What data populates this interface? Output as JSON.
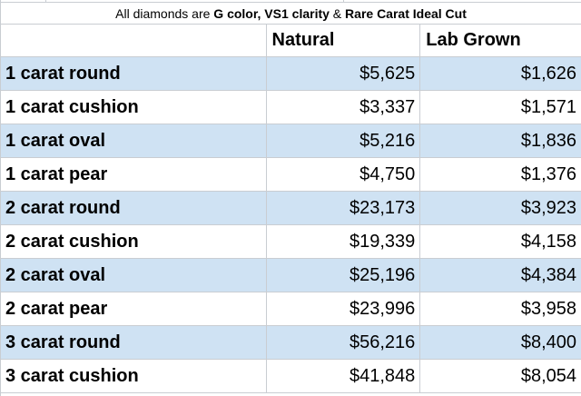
{
  "title": {
    "parts": [
      {
        "text": "All diamonds are ",
        "bold": false
      },
      {
        "text": "G color, VS1 clarity",
        "bold": true
      },
      {
        "text": " & ",
        "bold": false
      },
      {
        "text": "Rare Carat Ideal Cut",
        "bold": true
      }
    ],
    "full": "All diamonds are G color, VS1 clarity & Rare Carat Ideal Cut"
  },
  "header": {
    "blank": "",
    "natural": "Natural",
    "lab_grown": "Lab Grown"
  },
  "rows": [
    {
      "label": "1 carat round",
      "natural": "$5,625",
      "lab_grown": "$1,626"
    },
    {
      "label": "1 carat cushion",
      "natural": "$3,337",
      "lab_grown": "$1,571"
    },
    {
      "label": "1 carat oval",
      "natural": "$5,216",
      "lab_grown": "$1,836"
    },
    {
      "label": "1 carat pear",
      "natural": "$4,750",
      "lab_grown": "$1,376"
    },
    {
      "label": "2 carat round",
      "natural": "$23,173",
      "lab_grown": "$3,923"
    },
    {
      "label": "2 carat cushion",
      "natural": "$19,339",
      "lab_grown": "$4,158"
    },
    {
      "label": "2 carat oval",
      "natural": "$25,196",
      "lab_grown": "$4,384"
    },
    {
      "label": "2 carat pear",
      "natural": "$23,996",
      "lab_grown": "$3,958"
    },
    {
      "label": "3 carat round",
      "natural": "$56,216",
      "lab_grown": "$8,400"
    },
    {
      "label": "3 carat cushion",
      "natural": "$41,848",
      "lab_grown": "$8,054"
    }
  ],
  "colors": {
    "band": "#cfe2f3",
    "grid": "#c9cdd2",
    "text": "#000000",
    "background": "#ffffff"
  },
  "chart_data": {
    "type": "table",
    "title": "All diamonds are G color, VS1 clarity & Rare Carat Ideal Cut",
    "categories": [
      "1 carat round",
      "1 carat cushion",
      "1 carat oval",
      "1 carat pear",
      "2 carat round",
      "2 carat cushion",
      "2 carat oval",
      "2 carat pear",
      "3 carat round",
      "3 carat cushion"
    ],
    "series": [
      {
        "name": "Natural",
        "values": [
          5625,
          3337,
          5216,
          4750,
          23173,
          19339,
          25196,
          23996,
          56216,
          41848
        ]
      },
      {
        "name": "Lab Grown",
        "values": [
          1626,
          1571,
          1836,
          1376,
          3923,
          4158,
          4384,
          3958,
          8400,
          8054
        ]
      }
    ],
    "unit": "USD",
    "layout": {
      "banded_rows": true,
      "band_color": "#cfe2f3",
      "grid": true,
      "value_align": "right"
    }
  }
}
